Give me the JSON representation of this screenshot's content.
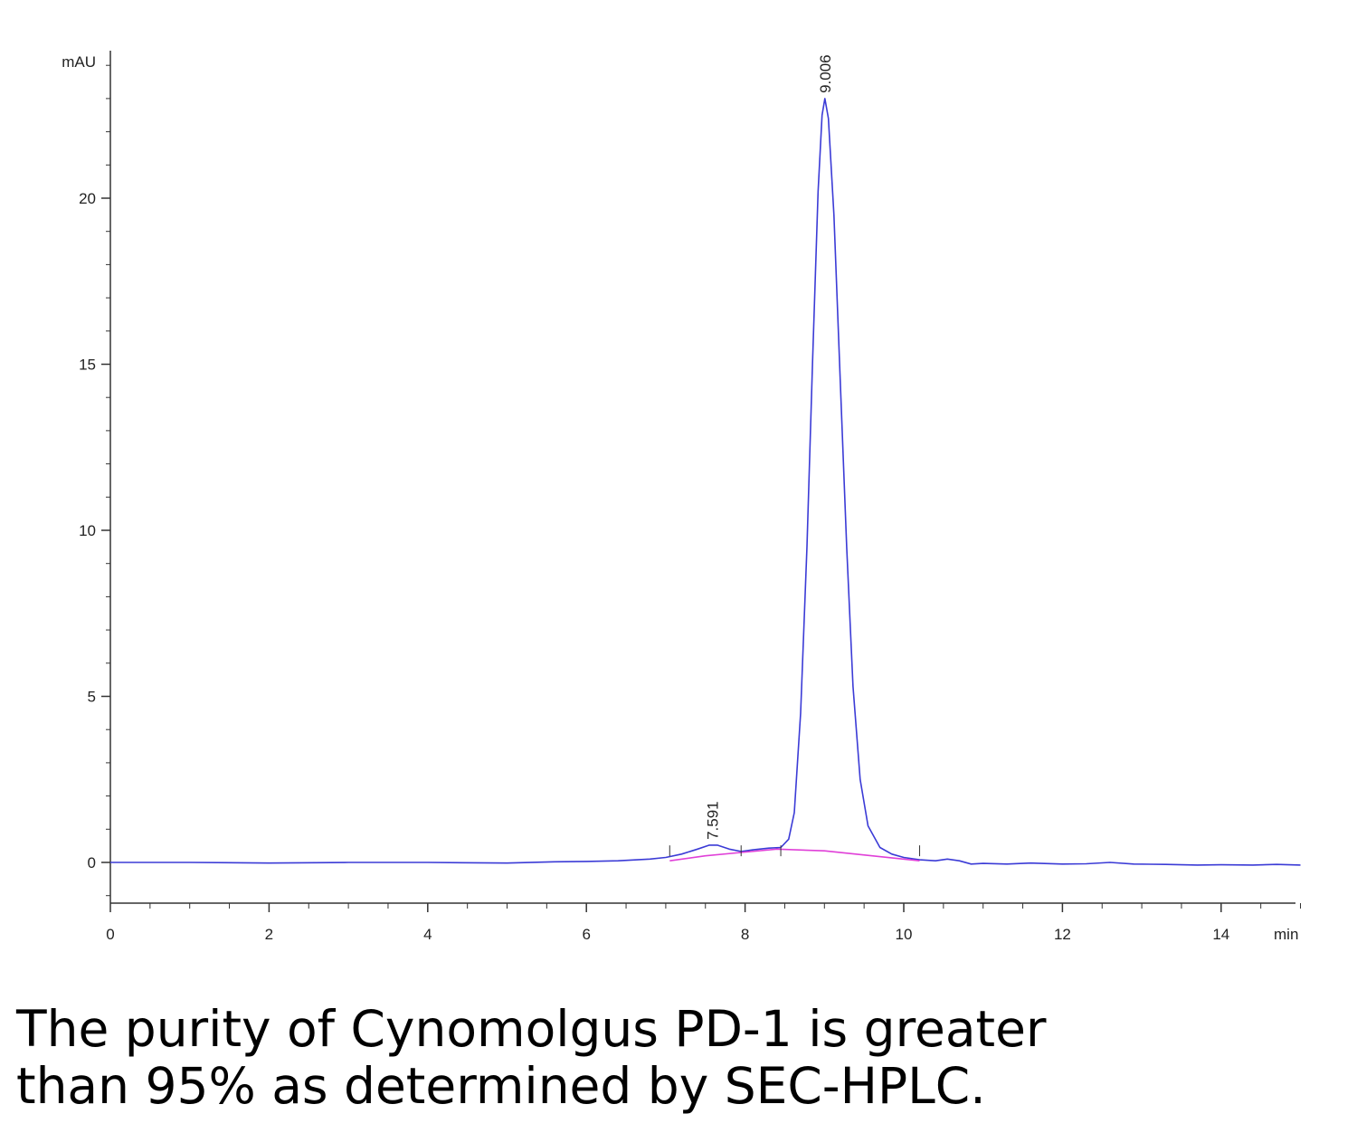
{
  "chart_data": {
    "type": "line",
    "ylabel": "mAU",
    "xlabel": "min",
    "xlim": [
      0,
      15
    ],
    "ylim": [
      -1.2,
      24
    ],
    "x_ticks": [
      0,
      2,
      4,
      6,
      8,
      10,
      12,
      14
    ],
    "y_ticks": [
      0,
      5,
      10,
      15,
      20
    ],
    "grid": false,
    "series": [
      {
        "color": "#3b3bd6",
        "points": [
          [
            0,
            0
          ],
          [
            1,
            0
          ],
          [
            2,
            -0.02
          ],
          [
            3,
            0
          ],
          [
            4,
            0
          ],
          [
            5,
            -0.02
          ],
          [
            5.6,
            0.02
          ],
          [
            6,
            0.03
          ],
          [
            6.4,
            0.05
          ],
          [
            6.8,
            0.1
          ],
          [
            7.0,
            0.15
          ],
          [
            7.2,
            0.25
          ],
          [
            7.4,
            0.4
          ],
          [
            7.55,
            0.52
          ],
          [
            7.65,
            0.52
          ],
          [
            7.8,
            0.4
          ],
          [
            7.95,
            0.33
          ],
          [
            8.1,
            0.38
          ],
          [
            8.3,
            0.43
          ],
          [
            8.45,
            0.45
          ],
          [
            8.55,
            0.7
          ],
          [
            8.62,
            1.5
          ],
          [
            8.7,
            4.5
          ],
          [
            8.78,
            9.5
          ],
          [
            8.85,
            15
          ],
          [
            8.92,
            20.2
          ],
          [
            8.97,
            22.5
          ],
          [
            9.006,
            23.0
          ],
          [
            9.05,
            22.4
          ],
          [
            9.12,
            19.5
          ],
          [
            9.2,
            14.5
          ],
          [
            9.28,
            9.5
          ],
          [
            9.36,
            5.3
          ],
          [
            9.45,
            2.5
          ],
          [
            9.55,
            1.1
          ],
          [
            9.7,
            0.45
          ],
          [
            9.85,
            0.25
          ],
          [
            10.0,
            0.15
          ],
          [
            10.2,
            0.08
          ],
          [
            10.4,
            0.05
          ],
          [
            10.55,
            0.1
          ],
          [
            10.7,
            0.05
          ],
          [
            10.85,
            -0.05
          ],
          [
            11.0,
            -0.03
          ],
          [
            11.3,
            -0.05
          ],
          [
            11.6,
            -0.02
          ],
          [
            12.0,
            -0.05
          ],
          [
            12.3,
            -0.04
          ],
          [
            12.6,
            0.0
          ],
          [
            12.9,
            -0.05
          ],
          [
            13.3,
            -0.06
          ],
          [
            13.7,
            -0.08
          ],
          [
            14.0,
            -0.07
          ],
          [
            14.4,
            -0.08
          ],
          [
            14.7,
            -0.06
          ],
          [
            15.0,
            -0.08
          ]
        ]
      },
      {
        "color": "#e040d8",
        "points": [
          [
            7.05,
            0.05
          ],
          [
            7.5,
            0.2
          ],
          [
            7.95,
            0.3
          ],
          [
            8.4,
            0.4
          ],
          [
            9.0,
            0.35
          ],
          [
            9.6,
            0.2
          ],
          [
            10.2,
            0.05
          ]
        ]
      }
    ],
    "peak_labels": [
      {
        "x": 7.591,
        "y": 0.52,
        "text": "7.591"
      },
      {
        "x": 9.006,
        "y": 23.0,
        "text": "9.006"
      }
    ]
  },
  "caption": {
    "line1": "The purity of Cynomolgus PD-1 is greater",
    "line2": "than 95% as determined by SEC-HPLC."
  }
}
